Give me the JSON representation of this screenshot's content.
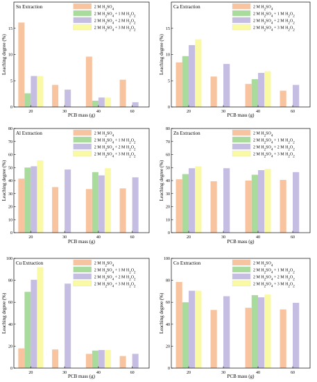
{
  "figure": {
    "x_axis_label": "PCB mass (g)",
    "y_axis_label": "Leaching degree (%)",
    "legend": [
      "2 M H2SO4",
      "2 M H2SO4 + 1 M H2O2",
      "2 M H2SO4 + 2 M H2O2",
      "2 M H2SO4 + 3 M H2O2"
    ],
    "series_colors": [
      "#f8c4a0",
      "#a9dc9c",
      "#c6bde2",
      "#fbfaa4"
    ]
  },
  "chart_data": [
    {
      "type": "bar",
      "title": "Sn Extraction",
      "categories": [
        "20",
        "30",
        "40",
        "60"
      ],
      "series": [
        {
          "name": "2 M H2SO4",
          "values": [
            16.1,
            4.2,
            9.6,
            5.2
          ]
        },
        {
          "name": "2 M H2SO4 + 1 M H2O2",
          "values": [
            2.6,
            null,
            1.2,
            null
          ]
        },
        {
          "name": "2 M H2SO4 + 2 M H2O2",
          "values": [
            5.9,
            3.3,
            1.8,
            0.9
          ]
        },
        {
          "name": "2 M H2SO4 + 3 M H2O2",
          "values": [
            5.9,
            null,
            1.8,
            null
          ]
        }
      ],
      "xlabel": "PCB mass (g)",
      "ylabel": "Leaching degree (%)",
      "ylim": [
        0,
        20
      ],
      "yticks": [
        0,
        5,
        10,
        15
      ],
      "legend_position": "top-right"
    },
    {
      "type": "bar",
      "title": "Ca Extraction",
      "categories": [
        "20",
        "30",
        "40",
        "60"
      ],
      "series": [
        {
          "name": "2 M H2SO4",
          "values": [
            8.5,
            5.8,
            4.4,
            3.1
          ]
        },
        {
          "name": "2 M H2SO4 + 1 M H2O2",
          "values": [
            9.7,
            null,
            5.3,
            null
          ]
        },
        {
          "name": "2 M H2SO4 + 2 M H2O2",
          "values": [
            11.8,
            8.2,
            6.5,
            4.2
          ]
        },
        {
          "name": "2 M H2SO4 + 3 M H2O2",
          "values": [
            12.9,
            null,
            6.8,
            null
          ]
        }
      ],
      "xlabel": "PCB mass (g)",
      "ylabel": "Leaching degree (%)",
      "ylim": [
        0,
        20
      ],
      "yticks": [
        0,
        5,
        10,
        15
      ],
      "legend_position": "top-right"
    },
    {
      "type": "bar",
      "title": "Al Extraction",
      "categories": [
        "20",
        "30",
        "40",
        "60"
      ],
      "series": [
        {
          "name": "2 M H2SO4",
          "values": [
            41.5,
            35,
            33.5,
            34
          ]
        },
        {
          "name": "2 M H2SO4 + 1 M H2O2",
          "values": [
            50,
            null,
            46.5,
            null
          ]
        },
        {
          "name": "2 M H2SO4 + 2 M H2O2",
          "values": [
            51,
            48.5,
            44,
            42.5
          ]
        },
        {
          "name": "2 M H2SO4 + 3 M H2O2",
          "values": [
            55.5,
            null,
            49.5,
            null
          ]
        }
      ],
      "xlabel": "PCB mass (g)",
      "ylabel": "Leaching degree (%)",
      "ylim": [
        0,
        80
      ],
      "yticks": [
        0,
        10,
        20,
        30,
        40,
        50,
        60,
        70,
        80
      ],
      "legend_position": "top-right"
    },
    {
      "type": "bar",
      "title": "Zn Extraction",
      "categories": [
        "20",
        "30",
        "40",
        "60"
      ],
      "series": [
        {
          "name": "2 M H2SO4",
          "values": [
            41,
            39.5,
            40,
            40.5
          ]
        },
        {
          "name": "2 M H2SO4 + 1 M H2O2",
          "values": [
            45,
            null,
            44.5,
            null
          ]
        },
        {
          "name": "2 M H2SO4 + 2 M H2O2",
          "values": [
            49.5,
            49.5,
            48,
            46.5
          ]
        },
        {
          "name": "2 M H2SO4 + 3 M H2O2",
          "values": [
            51,
            null,
            49,
            null
          ]
        }
      ],
      "xlabel": "PCB mass (g)",
      "ylabel": "Leaching degree (%)",
      "ylim": [
        0,
        80
      ],
      "yticks": [
        0,
        10,
        20,
        30,
        40,
        50,
        60,
        70,
        80
      ],
      "legend_position": "top-right"
    },
    {
      "type": "bar",
      "title": "Cu Extraction",
      "categories": [
        "20",
        "30",
        "40",
        "60"
      ],
      "series": [
        {
          "name": "2 M H2SO4",
          "values": [
            18,
            17,
            13,
            11
          ]
        },
        {
          "name": "2 M H2SO4 + 1 M H2O2",
          "values": [
            69.5,
            null,
            16,
            null
          ]
        },
        {
          "name": "2 M H2SO4 + 2 M H2O2",
          "values": [
            80.5,
            77,
            16.5,
            13
          ]
        },
        {
          "name": "2 M H2SO4 + 3 M H2O2",
          "values": [
            92,
            null,
            16.5,
            null
          ]
        }
      ],
      "xlabel": "PCB mass (g)",
      "ylabel": "Leaching degree (%)",
      "ylim": [
        0,
        100
      ],
      "yticks": [
        0,
        20,
        40,
        60,
        80,
        100
      ],
      "legend_position": "top-right"
    },
    {
      "type": "bar",
      "title": "Co Extraction",
      "categories": [
        "20",
        "30",
        "40",
        "60"
      ],
      "series": [
        {
          "name": "2 M H2SO4",
          "values": [
            78.5,
            53,
            55,
            53.5
          ]
        },
        {
          "name": "2 M H2SO4 + 1 M H2O2",
          "values": [
            60,
            null,
            66.5,
            null
          ]
        },
        {
          "name": "2 M H2SO4 + 2 M H2O2",
          "values": [
            70.5,
            65.5,
            64.5,
            59.5
          ]
        },
        {
          "name": "2 M H2SO4 + 3 M H2O2",
          "values": [
            70.5,
            null,
            67,
            null
          ]
        }
      ],
      "xlabel": "PCB mass (g)",
      "ylabel": "Leaching degree (%)",
      "ylim": [
        0,
        100
      ],
      "yticks": [
        0,
        20,
        40,
        60,
        80,
        100
      ],
      "legend_position": "top-right"
    }
  ]
}
